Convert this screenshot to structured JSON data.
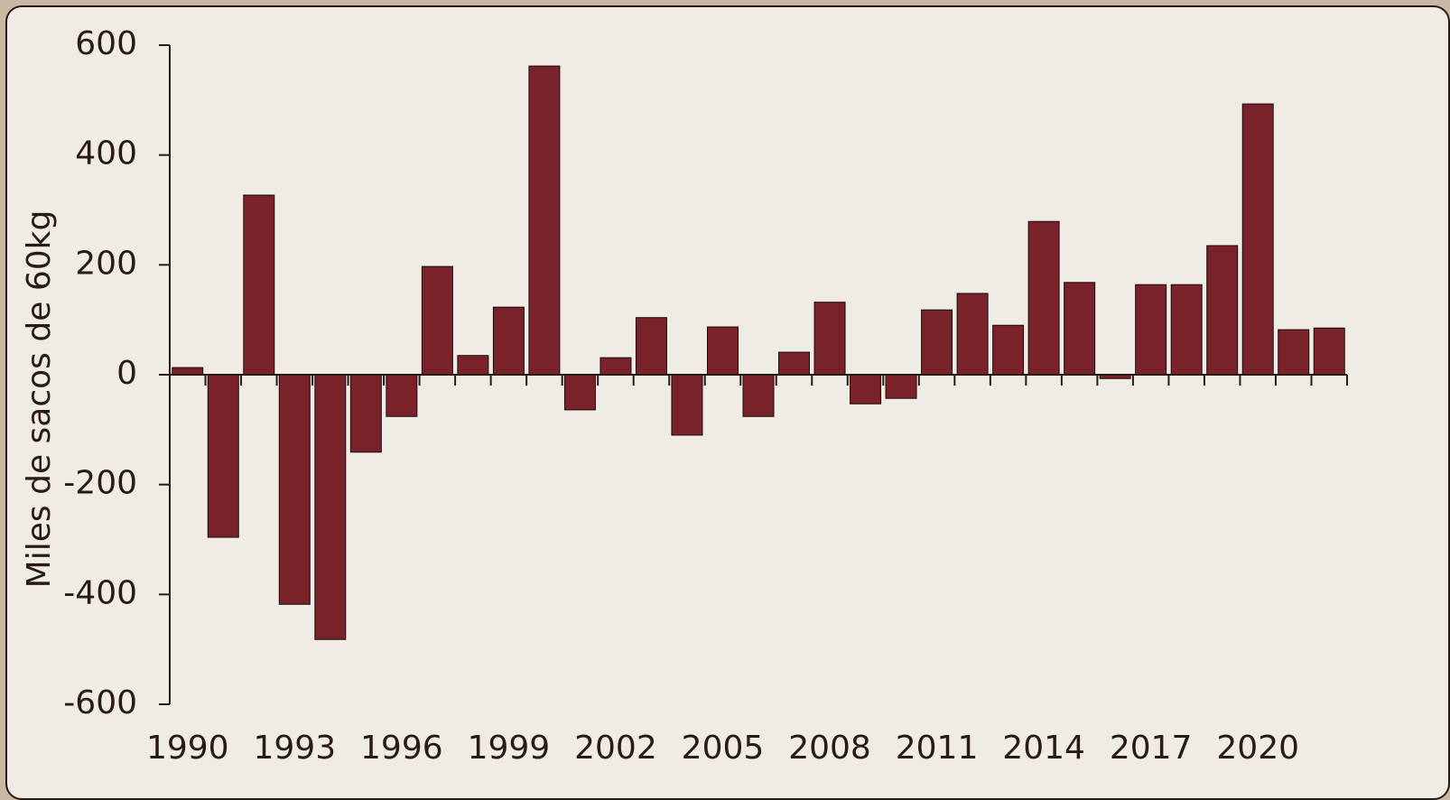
{
  "chart_data": {
    "type": "bar",
    "y_label": "Miles de sacos de 60kg",
    "categories": [
      "1990",
      null,
      null,
      "1993",
      null,
      null,
      "1996",
      null,
      null,
      "1999",
      null,
      null,
      "2002",
      null,
      null,
      "2005",
      null,
      null,
      "2008",
      null,
      null,
      "2011",
      null,
      null,
      "2014",
      null,
      null,
      "2017",
      null,
      null,
      "2020",
      null,
      null
    ],
    "values": [
      13,
      -296,
      327,
      -418,
      -482,
      -141,
      -76,
      197,
      35,
      123,
      562,
      -64,
      31,
      104,
      -110,
      87,
      -76,
      41,
      132,
      -53,
      -43,
      118,
      148,
      90,
      279,
      168,
      -7,
      164,
      164,
      235,
      493,
      82,
      85
    ],
    "color": "#7a2229",
    "ylim": [
      -600,
      600
    ],
    "yticks": [
      -600,
      -400,
      -200,
      0,
      200,
      400,
      600
    ]
  }
}
